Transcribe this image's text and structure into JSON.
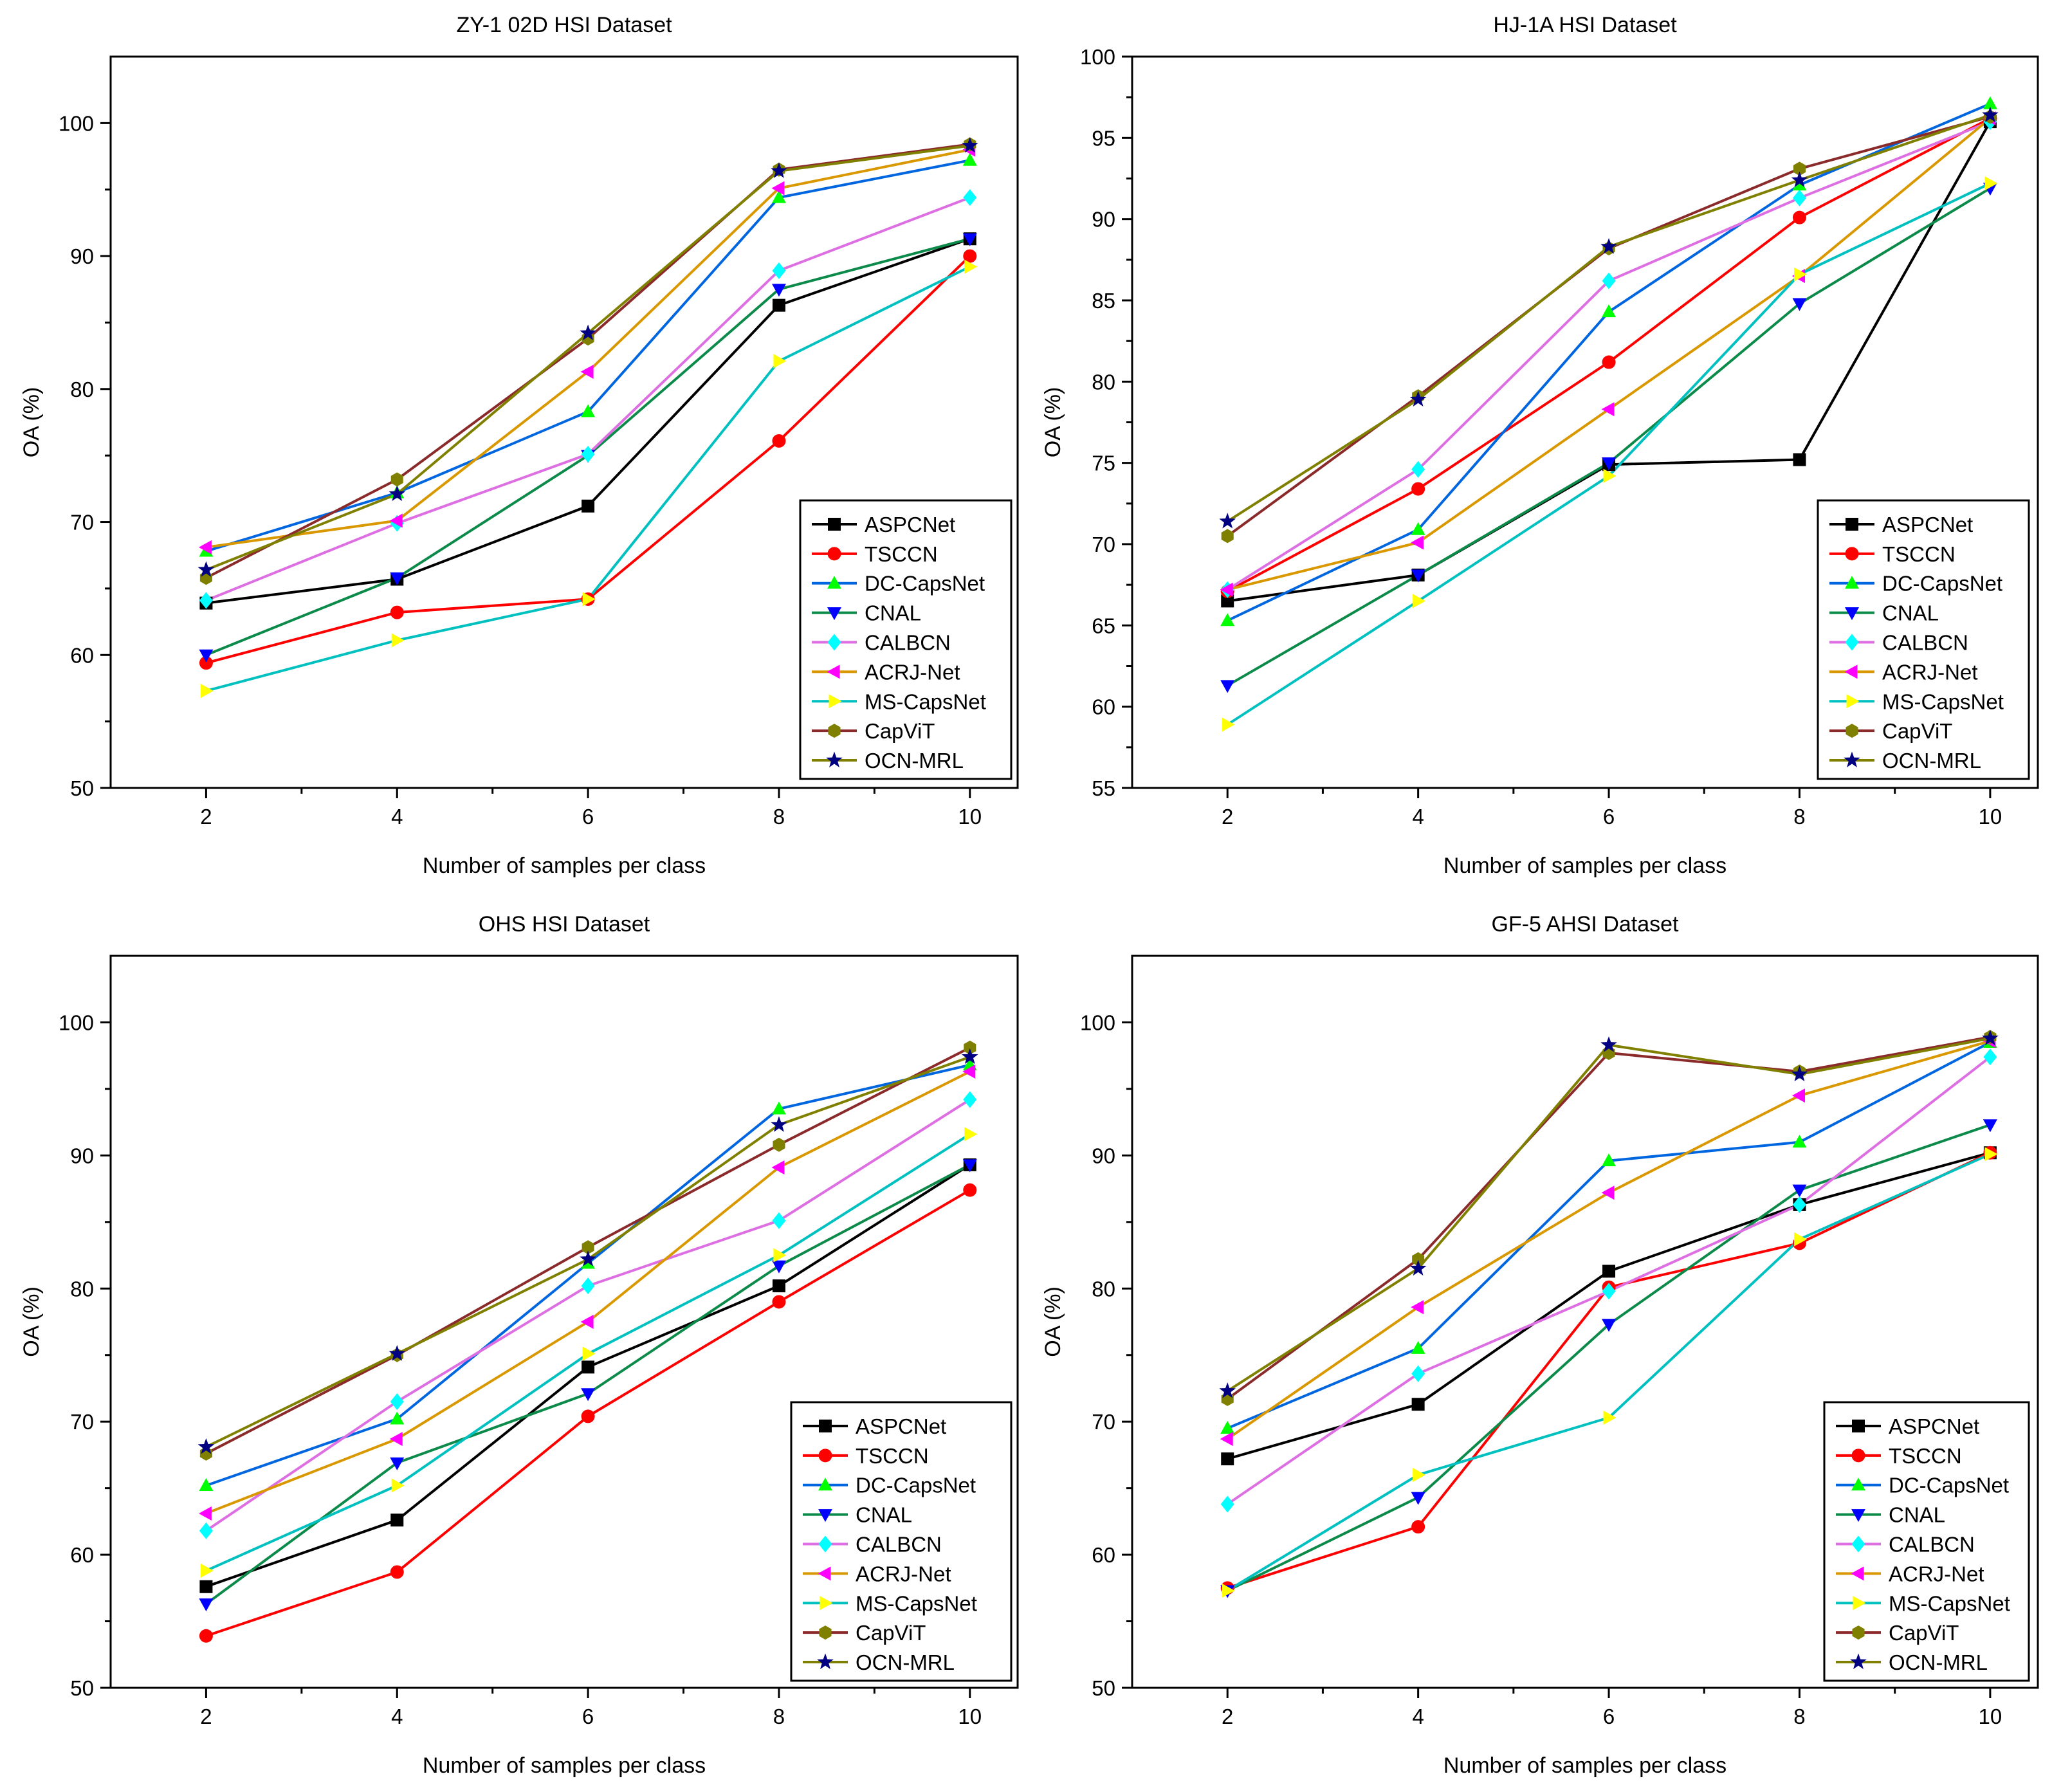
{
  "chart_data": [
    {
      "type": "line",
      "title": "ZY-1 02D HSI Dataset",
      "xlabel": "Number of samples per class",
      "ylabel": "OA (%)",
      "x": [
        2,
        4,
        6,
        8,
        10
      ],
      "xlim": [
        1,
        10.5
      ],
      "ylim": [
        50,
        105
      ],
      "xticks": [
        2,
        4,
        6,
        8,
        10
      ],
      "yticks": [
        50,
        60,
        70,
        80,
        90,
        100
      ],
      "legend_position": "bottom-right",
      "series": [
        {
          "name": "ASPCNet",
          "values": [
            63.9,
            65.7,
            71.2,
            86.3,
            91.3
          ]
        },
        {
          "name": "TSCCN",
          "values": [
            59.4,
            63.2,
            64.2,
            76.1,
            90.0
          ]
        },
        {
          "name": "DC-CapsNet",
          "values": [
            67.8,
            72.2,
            78.3,
            94.4,
            97.2
          ]
        },
        {
          "name": "CNAL",
          "values": [
            60.0,
            65.8,
            75.0,
            87.5,
            91.3
          ]
        },
        {
          "name": "CALBCN",
          "values": [
            64.1,
            69.9,
            75.1,
            88.9,
            94.4
          ]
        },
        {
          "name": "ACRJ-Net",
          "values": [
            68.1,
            70.1,
            81.3,
            95.1,
            98.0
          ]
        },
        {
          "name": "MS-CapsNet",
          "values": [
            57.3,
            61.1,
            64.2,
            82.1,
            89.2
          ]
        },
        {
          "name": "CapViT",
          "values": [
            65.8,
            73.2,
            83.8,
            96.5,
            98.4
          ]
        },
        {
          "name": "OCN-MRL",
          "values": [
            66.4,
            72.1,
            84.2,
            96.4,
            98.3
          ]
        }
      ]
    },
    {
      "type": "line",
      "title": "HJ-1A HSI Dataset",
      "xlabel": "Number of samples per class",
      "ylabel": "OA (%)",
      "x": [
        2,
        4,
        6,
        8,
        10
      ],
      "xlim": [
        1,
        10.5
      ],
      "ylim": [
        55,
        100
      ],
      "xticks": [
        2,
        4,
        6,
        8,
        10
      ],
      "yticks": [
        55,
        60,
        65,
        70,
        75,
        80,
        85,
        90,
        95,
        100
      ],
      "legend_position": "bottom-right",
      "series": [
        {
          "name": "ASPCNet",
          "values": [
            66.5,
            68.1,
            74.9,
            75.2,
            96.0
          ]
        },
        {
          "name": "TSCCN",
          "values": [
            67.1,
            73.4,
            81.2,
            90.1,
            96.2
          ]
        },
        {
          "name": "DC-CapsNet",
          "values": [
            65.3,
            70.9,
            84.3,
            92.1,
            97.1
          ]
        },
        {
          "name": "CNAL",
          "values": [
            61.3,
            68.1,
            75.0,
            84.8,
            91.9
          ]
        },
        {
          "name": "CALBCN",
          "values": [
            67.2,
            74.6,
            86.2,
            91.3,
            96.0
          ]
        },
        {
          "name": "ACRJ-Net",
          "values": [
            67.2,
            70.1,
            78.3,
            86.5,
            96.2
          ]
        },
        {
          "name": "MS-CapsNet",
          "values": [
            58.9,
            66.5,
            74.2,
            86.6,
            92.2
          ]
        },
        {
          "name": "CapViT",
          "values": [
            70.5,
            79.1,
            88.2,
            93.1,
            96.3
          ]
        },
        {
          "name": "OCN-MRL",
          "values": [
            71.4,
            78.9,
            88.3,
            92.4,
            96.4
          ]
        }
      ]
    },
    {
      "type": "line",
      "title": "OHS HSI Dataset",
      "xlabel": "Number of samples per class",
      "ylabel": "OA (%)",
      "x": [
        2,
        4,
        6,
        8,
        10
      ],
      "xlim": [
        1,
        10.5
      ],
      "ylim": [
        50,
        105
      ],
      "xticks": [
        2,
        4,
        6,
        8,
        10
      ],
      "yticks": [
        50,
        60,
        70,
        80,
        90,
        100
      ],
      "legend_position": "bottom-right",
      "series": [
        {
          "name": "ASPCNet",
          "values": [
            57.6,
            62.6,
            74.1,
            80.2,
            89.3
          ]
        },
        {
          "name": "TSCCN",
          "values": [
            53.9,
            58.7,
            70.4,
            79.0,
            87.4
          ]
        },
        {
          "name": "DC-CapsNet",
          "values": [
            65.2,
            70.2,
            81.9,
            93.5,
            96.8
          ]
        },
        {
          "name": "CNAL",
          "values": [
            56.3,
            66.9,
            72.1,
            81.7,
            89.3
          ]
        },
        {
          "name": "CALBCN",
          "values": [
            61.8,
            71.5,
            80.2,
            85.1,
            94.2
          ]
        },
        {
          "name": "ACRJ-Net",
          "values": [
            63.1,
            68.7,
            77.5,
            89.1,
            96.3
          ]
        },
        {
          "name": "MS-CapsNet",
          "values": [
            58.8,
            65.2,
            75.1,
            82.5,
            91.6
          ]
        },
        {
          "name": "CapViT",
          "values": [
            67.6,
            75.0,
            83.1,
            90.8,
            98.1
          ]
        },
        {
          "name": "OCN-MRL",
          "values": [
            68.1,
            75.1,
            82.2,
            92.3,
            97.4
          ]
        }
      ]
    },
    {
      "type": "line",
      "title": "GF-5 AHSI Dataset",
      "xlabel": "Number of samples per class",
      "ylabel": "OA (%)",
      "x": [
        2,
        4,
        6,
        8,
        10
      ],
      "xlim": [
        1,
        10.5
      ],
      "ylim": [
        50,
        105
      ],
      "xticks": [
        2,
        4,
        6,
        8,
        10
      ],
      "yticks": [
        50,
        60,
        70,
        80,
        90,
        100
      ],
      "legend_position": "bottom-right",
      "series": [
        {
          "name": "ASPCNet",
          "values": [
            67.2,
            71.3,
            81.3,
            86.3,
            90.2
          ]
        },
        {
          "name": "TSCCN",
          "values": [
            57.5,
            62.1,
            80.1,
            83.4,
            90.2
          ]
        },
        {
          "name": "DC-CapsNet",
          "values": [
            69.5,
            75.5,
            89.6,
            91.0,
            98.5
          ]
        },
        {
          "name": "CNAL",
          "values": [
            57.3,
            64.3,
            77.3,
            87.4,
            92.3
          ]
        },
        {
          "name": "CALBCN",
          "values": [
            63.8,
            73.6,
            79.8,
            86.3,
            97.4
          ]
        },
        {
          "name": "ACRJ-Net",
          "values": [
            68.7,
            78.6,
            87.2,
            94.5,
            98.6
          ]
        },
        {
          "name": "MS-CapsNet",
          "values": [
            57.3,
            66.0,
            70.3,
            83.7,
            90.1
          ]
        },
        {
          "name": "CapViT",
          "values": [
            71.7,
            82.2,
            97.7,
            96.3,
            98.9
          ]
        },
        {
          "name": "OCN-MRL",
          "values": [
            72.3,
            81.5,
            98.3,
            96.1,
            98.8
          ]
        }
      ]
    }
  ],
  "style": {
    "series_colors": {
      "ASPCNet": "#000000",
      "TSCCN": "#ff0000",
      "DC-CapsNet": "#0066e0",
      "CNAL": "#0b8a4a",
      "CALBCN": "#dd6fe3",
      "ACRJ-Net": "#d99800",
      "MS-CapsNet": "#00c0c0",
      "CapViT": "#8b2a2a",
      "OCN-MRL": "#808000"
    },
    "marker_colors": {
      "ASPCNet": "#000000",
      "TSCCN": "#ff0000",
      "DC-CapsNet": "#00ff00",
      "CNAL": "#0000ff",
      "CALBCN": "#00ffff",
      "ACRJ-Net": "#ff00ff",
      "MS-CapsNet": "#ffff00",
      "CapViT": "#808000",
      "OCN-MRL": "#000080"
    },
    "marker_shapes": {
      "ASPCNet": "square",
      "TSCCN": "circle",
      "DC-CapsNet": "triangle-up",
      "CNAL": "triangle-down",
      "CALBCN": "diamond",
      "ACRJ-Net": "triangle-left",
      "MS-CapsNet": "triangle-right",
      "CapViT": "hexagon",
      "OCN-MRL": "star"
    }
  }
}
